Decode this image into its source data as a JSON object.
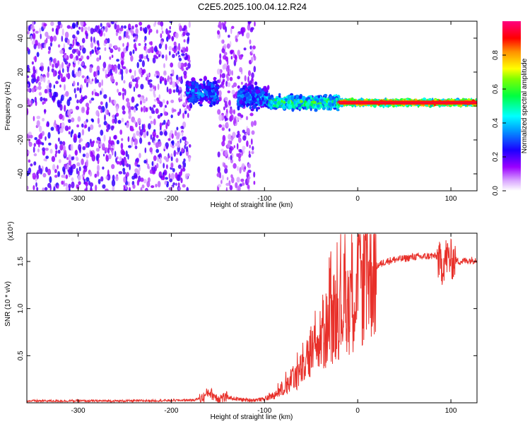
{
  "title": "C2E5.2025.100.04.12.R24",
  "chart_data": [
    {
      "type": "heatmap",
      "xlabel": "Height of straight line (km)",
      "ylabel": "Frequency (Hz)",
      "xlim": [
        -355,
        128
      ],
      "ylim": [
        -50,
        50
      ],
      "x_ticks": [
        -300,
        -200,
        -100,
        0,
        100
      ],
      "y_ticks": [
        -40,
        -20,
        0,
        20,
        40
      ],
      "colorbar": {
        "label": "Normalized spectral amplitude",
        "range": [
          0,
          1
        ],
        "ticks": [
          "0.0",
          "0.2",
          "0.4",
          "0.6",
          "0.8"
        ],
        "colormap": [
          "#ffffff",
          "#b300ff",
          "#0000ff",
          "#00ffff",
          "#00ff00",
          "#ffff00",
          "#ff0000",
          "#ff00aa"
        ]
      },
      "features": [
        {
          "name": "broadband noise",
          "x_range": [
            -355,
            -180
          ],
          "freq_range": [
            -50,
            50
          ],
          "amplitude": 0.15
        },
        {
          "name": "broadband noise",
          "x_range": [
            -150,
            -110
          ],
          "freq_range": [
            -50,
            50
          ],
          "amplitude": 0.12
        },
        {
          "name": "signal cluster",
          "x_range": [
            -183,
            -150
          ],
          "freq_center": 8,
          "freq_width": 10,
          "amplitude": 0.35
        },
        {
          "name": "signal cluster",
          "x_range": [
            -128,
            -95
          ],
          "freq_center": 5,
          "freq_width": 9,
          "amplitude": 0.4
        },
        {
          "name": "converging trace",
          "x_range": [
            -95,
            -20
          ],
          "freq_center": 2,
          "freq_width": 5,
          "amplitude": 0.6
        },
        {
          "name": "stable carrier",
          "x_range": [
            -20,
            128
          ],
          "freq_center": 2,
          "freq_width": 2,
          "amplitude": 0.9
        }
      ]
    },
    {
      "type": "line",
      "xlabel": "Height of straight line (km)",
      "ylabel": "SNR (10 * v/v)",
      "y_multiplier": "(x10⁴)",
      "xlim": [
        -355,
        128
      ],
      "ylim": [
        0,
        1.8
      ],
      "x_ticks": [
        -300,
        -200,
        -100,
        0,
        100
      ],
      "y_ticks": [
        0.5,
        1.0,
        1.5
      ],
      "y_tick_labels": [
        "0.5",
        "1.0",
        "1.5"
      ],
      "series": [
        {
          "color": "#e8302a",
          "x": [
            -355,
            -300,
            -250,
            -200,
            -175,
            -165,
            -160,
            -155,
            -150,
            -140,
            -130,
            -120,
            -110,
            -100,
            -90,
            -80,
            -70,
            -60,
            -50,
            -40,
            -30,
            -20,
            -10,
            0,
            10,
            20,
            30,
            40,
            50,
            60,
            70,
            80,
            85,
            90,
            95,
            100,
            110,
            128
          ],
          "y": [
            0.02,
            0.02,
            0.02,
            0.025,
            0.03,
            0.06,
            0.12,
            0.08,
            0.05,
            0.06,
            0.04,
            0.03,
            0.03,
            0.04,
            0.08,
            0.15,
            0.25,
            0.35,
            0.5,
            0.65,
            0.85,
            1.0,
            1.1,
            1.2,
            1.35,
            1.45,
            1.5,
            1.52,
            1.53,
            1.55,
            1.55,
            1.56,
            1.55,
            1.45,
            1.55,
            1.52,
            1.5,
            1.52
          ]
        }
      ]
    }
  ]
}
